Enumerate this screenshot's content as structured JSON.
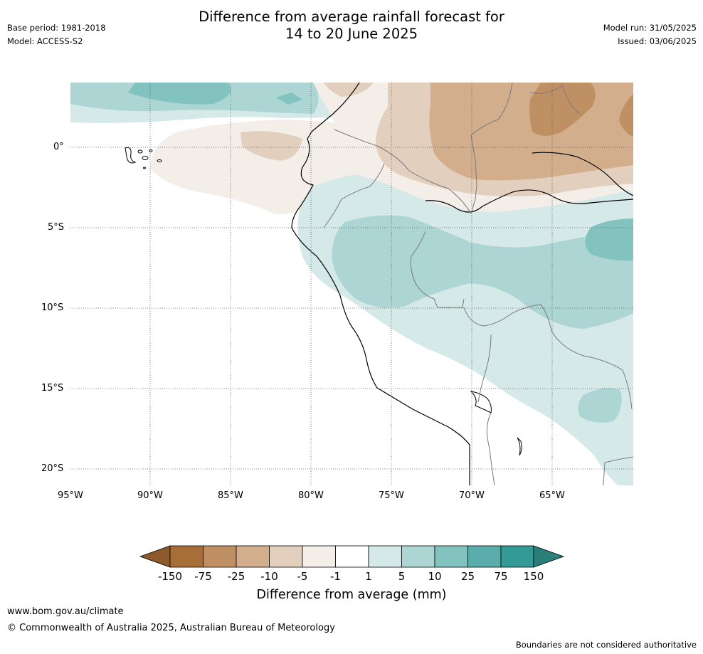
{
  "title_line1": "Difference from average rainfall forecast for",
  "title_line2": "14 to 20 June 2025",
  "base_period": "Base period: 1981-2018",
  "model": "Model: ACCESS-S2",
  "model_run": "Model run: 31/05/2025",
  "issued": "Issued: 03/06/2025",
  "lat_labels": [
    "0°",
    "5°S",
    "10°S",
    "15°S",
    "20°S"
  ],
  "lon_labels": [
    "95°W",
    "90°W",
    "85°W",
    "80°W",
    "75°W",
    "70°W",
    "65°W"
  ],
  "legend": {
    "title": "Difference from average (mm)",
    "ticks": [
      "-150",
      "-75",
      "-25",
      "-10",
      "-5",
      "-1",
      "1",
      "5",
      "10",
      "25",
      "75",
      "150"
    ],
    "colors": [
      "#8c5a2b",
      "#a86e38",
      "#c09065",
      "#d2ae8c",
      "#e3cfbe",
      "#f3eee8",
      "#ffffff",
      "#d5e9e8",
      "#acd5d4",
      "#82c2bf",
      "#5aadaa",
      "#339a96",
      "#2a7f7b"
    ]
  },
  "footer": {
    "url": "www.bom.gov.au/climate",
    "copyright": "© Commonwealth of Australia 2025, Australian Bureau of Meteorology",
    "disclaimer": "Boundaries are not considered authoritative"
  }
}
